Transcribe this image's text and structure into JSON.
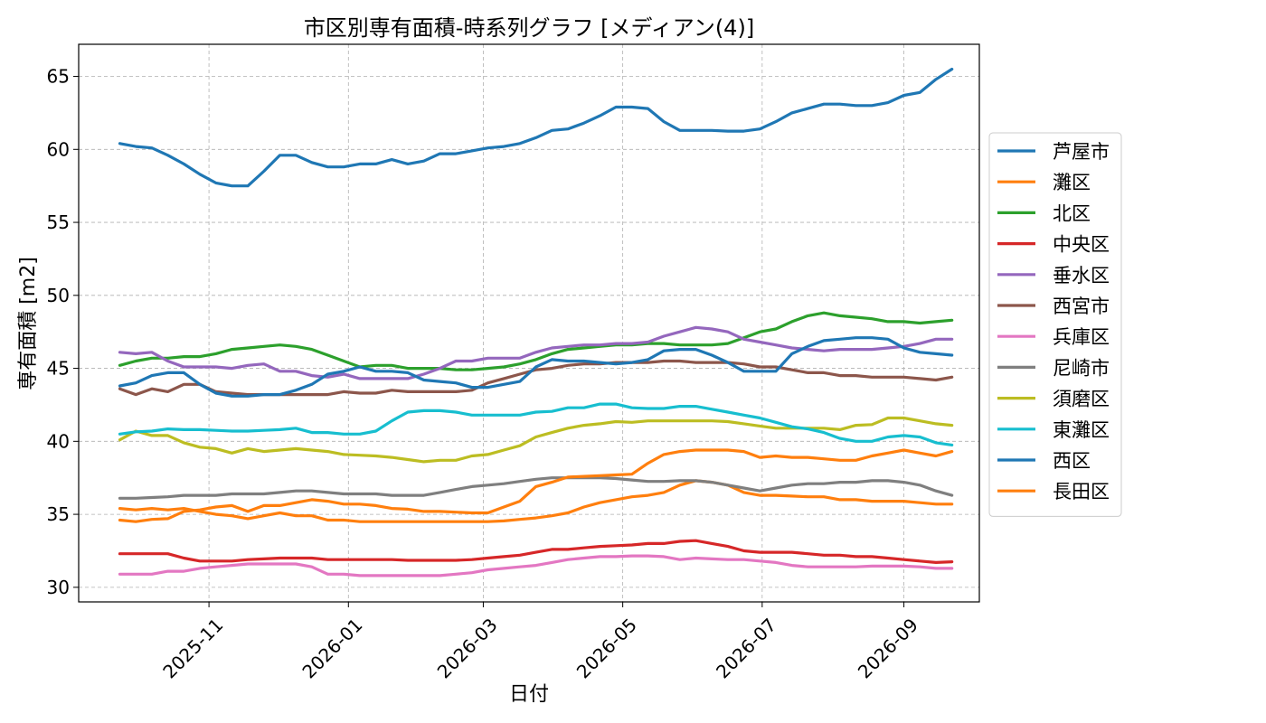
{
  "chart_data": {
    "type": "line",
    "title": "市区別専有面積-時系列グラフ [メディアン(4)]",
    "xlabel": "日付",
    "ylabel": "専有面積 [m2]",
    "ylim": [
      29,
      67.2
    ],
    "xlim": [
      "2025-09-05",
      "2026-10-04"
    ],
    "yticks": [
      30,
      35,
      40,
      45,
      50,
      55,
      60,
      65
    ],
    "xticks": [
      "2025-11-01",
      "2026-01-01",
      "2026-03-01",
      "2026-05-01",
      "2026-07-01",
      "2026-09-01"
    ],
    "xtick_labels": [
      "2025-11",
      "2026-01",
      "2026-03",
      "2026-05",
      "2026-07",
      "2026-09"
    ],
    "grid": true,
    "legend_position": "right",
    "x": [
      "2025-09-23",
      "2025-09-30",
      "2025-10-07",
      "2025-10-14",
      "2025-10-21",
      "2025-10-28",
      "2025-11-04",
      "2025-11-11",
      "2025-11-18",
      "2025-11-25",
      "2025-12-02",
      "2025-12-09",
      "2025-12-16",
      "2025-12-23",
      "2025-12-30",
      "2026-01-06",
      "2026-01-13",
      "2026-01-20",
      "2026-01-27",
      "2026-02-03",
      "2026-02-10",
      "2026-02-17",
      "2026-02-24",
      "2026-03-03",
      "2026-03-10",
      "2026-03-17",
      "2026-03-24",
      "2026-03-31",
      "2026-04-07",
      "2026-04-14",
      "2026-04-21",
      "2026-04-28",
      "2026-05-05",
      "2026-05-12",
      "2026-05-19",
      "2026-05-26",
      "2026-06-02",
      "2026-06-09",
      "2026-06-16",
      "2026-06-23",
      "2026-06-30",
      "2026-07-07",
      "2026-07-14",
      "2026-07-21",
      "2026-07-28",
      "2026-08-04",
      "2026-08-11",
      "2026-08-18",
      "2026-08-25",
      "2026-09-01",
      "2026-09-08",
      "2026-09-15",
      "2026-09-22"
    ],
    "series": [
      {
        "name": "芦屋市",
        "color": "#1f77b4",
        "values": [
          60.4,
          60.2,
          60.1,
          59.6,
          59.0,
          58.3,
          57.7,
          57.5,
          57.5,
          58.5,
          59.6,
          59.6,
          59.1,
          58.8,
          58.8,
          59.0,
          59.0,
          59.3,
          59.0,
          59.2,
          59.7,
          59.7,
          59.9,
          60.1,
          60.2,
          60.4,
          60.8,
          61.3,
          61.4,
          61.8,
          62.3,
          62.9,
          62.9,
          62.8,
          61.9,
          61.3,
          61.3,
          61.3,
          61.25,
          61.25,
          61.4,
          61.9,
          62.5,
          62.8,
          63.1,
          63.1,
          63.0,
          63.0,
          63.2,
          63.7,
          63.9,
          64.8,
          65.5
        ]
      },
      {
        "name": "灘区",
        "color": "#ff7f0e",
        "values": [
          35.4,
          35.3,
          35.4,
          35.3,
          35.4,
          35.2,
          35.0,
          34.9,
          34.7,
          34.9,
          35.1,
          34.9,
          34.9,
          34.6,
          34.6,
          34.5,
          34.5,
          34.5,
          34.5,
          34.5,
          34.5,
          34.5,
          34.5,
          34.5,
          34.55,
          34.65,
          34.75,
          34.9,
          35.1,
          35.5,
          35.8,
          36.0,
          36.2,
          36.3,
          36.5,
          37.0,
          37.3,
          37.2,
          37.0,
          36.5,
          36.3,
          36.3,
          36.25,
          36.2,
          36.2,
          36.0,
          36.0,
          35.9,
          35.9,
          35.9,
          35.8,
          35.7,
          35.7
        ]
      },
      {
        "name": "北区",
        "color": "#2ca02c",
        "values": [
          45.2,
          45.5,
          45.7,
          45.7,
          45.8,
          45.8,
          46.0,
          46.3,
          46.4,
          46.5,
          46.6,
          46.5,
          46.3,
          45.9,
          45.5,
          45.1,
          45.2,
          45.2,
          45.0,
          45.0,
          45.0,
          44.9,
          44.9,
          45.0,
          45.1,
          45.3,
          45.6,
          46.0,
          46.3,
          46.4,
          46.5,
          46.6,
          46.6,
          46.7,
          46.7,
          46.6,
          46.6,
          46.6,
          46.7,
          47.1,
          47.5,
          47.7,
          48.2,
          48.6,
          48.8,
          48.6,
          48.5,
          48.4,
          48.2,
          48.2,
          48.1,
          48.2,
          48.3
        ]
      },
      {
        "name": "中央区",
        "color": "#d62728",
        "values": [
          32.3,
          32.3,
          32.3,
          32.3,
          32.0,
          31.8,
          31.8,
          31.8,
          31.9,
          31.95,
          32.0,
          32.0,
          32.0,
          31.9,
          31.9,
          31.9,
          31.9,
          31.9,
          31.85,
          31.85,
          31.85,
          31.85,
          31.9,
          32.0,
          32.1,
          32.2,
          32.4,
          32.6,
          32.6,
          32.7,
          32.8,
          32.85,
          32.9,
          33.0,
          33.0,
          33.15,
          33.2,
          33.0,
          32.8,
          32.5,
          32.4,
          32.4,
          32.4,
          32.3,
          32.2,
          32.2,
          32.1,
          32.1,
          32.0,
          31.9,
          31.8,
          31.7,
          31.75
        ]
      },
      {
        "name": "垂水区",
        "color": "#9467bd",
        "values": [
          46.1,
          46.0,
          46.1,
          45.5,
          45.1,
          45.1,
          45.1,
          45.0,
          45.2,
          45.3,
          44.8,
          44.8,
          44.5,
          44.4,
          44.6,
          44.3,
          44.3,
          44.3,
          44.3,
          44.6,
          45.0,
          45.5,
          45.5,
          45.7,
          45.7,
          45.7,
          46.1,
          46.4,
          46.5,
          46.6,
          46.6,
          46.7,
          46.7,
          46.8,
          47.2,
          47.5,
          47.8,
          47.7,
          47.5,
          47.0,
          46.8,
          46.6,
          46.4,
          46.3,
          46.2,
          46.3,
          46.3,
          46.3,
          46.4,
          46.5,
          46.7,
          47.0,
          47.0
        ]
      },
      {
        "name": "西宮市",
        "color": "#8c564b",
        "values": [
          43.6,
          43.2,
          43.6,
          43.4,
          43.9,
          43.9,
          43.4,
          43.3,
          43.2,
          43.2,
          43.2,
          43.2,
          43.2,
          43.2,
          43.4,
          43.3,
          43.3,
          43.5,
          43.4,
          43.4,
          43.4,
          43.4,
          43.5,
          44.0,
          44.3,
          44.6,
          44.9,
          45.0,
          45.2,
          45.3,
          45.3,
          45.4,
          45.4,
          45.4,
          45.5,
          45.5,
          45.4,
          45.4,
          45.4,
          45.3,
          45.1,
          45.1,
          44.9,
          44.7,
          44.7,
          44.5,
          44.5,
          44.4,
          44.4,
          44.4,
          44.3,
          44.2,
          44.4
        ]
      },
      {
        "name": "兵庫区",
        "color": "#e377c2",
        "values": [
          30.9,
          30.9,
          30.9,
          31.1,
          31.1,
          31.3,
          31.4,
          31.5,
          31.6,
          31.6,
          31.6,
          31.6,
          31.4,
          30.9,
          30.9,
          30.8,
          30.8,
          30.8,
          30.8,
          30.8,
          30.8,
          30.9,
          31.0,
          31.2,
          31.3,
          31.4,
          31.5,
          31.7,
          31.9,
          32.0,
          32.1,
          32.1,
          32.15,
          32.15,
          32.1,
          31.9,
          32.0,
          31.95,
          31.9,
          31.9,
          31.8,
          31.7,
          31.5,
          31.4,
          31.4,
          31.4,
          31.4,
          31.45,
          31.45,
          31.45,
          31.4,
          31.3,
          31.3
        ]
      },
      {
        "name": "尼崎市",
        "color": "#7f7f7f",
        "values": [
          36.1,
          36.1,
          36.15,
          36.2,
          36.3,
          36.3,
          36.3,
          36.4,
          36.4,
          36.4,
          36.5,
          36.6,
          36.6,
          36.5,
          36.4,
          36.4,
          36.4,
          36.3,
          36.3,
          36.3,
          36.5,
          36.7,
          36.9,
          37.0,
          37.1,
          37.25,
          37.4,
          37.5,
          37.5,
          37.5,
          37.5,
          37.45,
          37.35,
          37.25,
          37.25,
          37.3,
          37.3,
          37.2,
          37.0,
          36.8,
          36.6,
          36.8,
          37.0,
          37.1,
          37.1,
          37.2,
          37.2,
          37.3,
          37.3,
          37.2,
          37.0,
          36.6,
          36.3
        ]
      },
      {
        "name": "須磨区",
        "color": "#bcbd22",
        "values": [
          40.1,
          40.7,
          40.4,
          40.4,
          39.9,
          39.6,
          39.5,
          39.2,
          39.5,
          39.3,
          39.4,
          39.5,
          39.4,
          39.3,
          39.1,
          39.05,
          39.0,
          38.9,
          38.75,
          38.6,
          38.7,
          38.7,
          39.0,
          39.1,
          39.4,
          39.7,
          40.3,
          40.6,
          40.9,
          41.1,
          41.2,
          41.35,
          41.3,
          41.4,
          41.4,
          41.4,
          41.4,
          41.4,
          41.35,
          41.2,
          41.05,
          40.9,
          40.9,
          40.9,
          40.9,
          40.8,
          41.1,
          41.15,
          41.6,
          41.6,
          41.4,
          41.2,
          41.1
        ]
      },
      {
        "name": "東灘区",
        "color": "#17becf",
        "values": [
          40.5,
          40.65,
          40.7,
          40.85,
          40.8,
          40.8,
          40.75,
          40.7,
          40.7,
          40.75,
          40.8,
          40.9,
          40.6,
          40.6,
          40.5,
          40.5,
          40.7,
          41.4,
          42.0,
          42.1,
          42.1,
          42.0,
          41.8,
          41.8,
          41.8,
          41.8,
          42.0,
          42.05,
          42.3,
          42.3,
          42.55,
          42.55,
          42.3,
          42.25,
          42.25,
          42.4,
          42.4,
          42.2,
          42.0,
          41.8,
          41.6,
          41.3,
          41.0,
          40.85,
          40.6,
          40.2,
          40.0,
          40.0,
          40.3,
          40.4,
          40.3,
          39.9,
          39.75
        ]
      },
      {
        "name": "西区",
        "color": "#1f77b4",
        "values": [
          43.8,
          44.0,
          44.5,
          44.7,
          44.7,
          43.9,
          43.3,
          43.1,
          43.1,
          43.2,
          43.2,
          43.5,
          43.9,
          44.6,
          44.8,
          45.1,
          44.8,
          44.8,
          44.7,
          44.2,
          44.1,
          44.0,
          43.7,
          43.7,
          43.9,
          44.1,
          45.1,
          45.6,
          45.5,
          45.5,
          45.4,
          45.3,
          45.4,
          45.6,
          46.2,
          46.3,
          46.3,
          45.9,
          45.4,
          44.8,
          44.8,
          44.8,
          46.0,
          46.5,
          46.9,
          47.0,
          47.1,
          47.1,
          47.0,
          46.4,
          46.1,
          46.0,
          45.9
        ]
      },
      {
        "name": "長田区",
        "color": "#ff7f0e",
        "values": [
          34.6,
          34.5,
          34.65,
          34.7,
          35.2,
          35.3,
          35.5,
          35.6,
          35.2,
          35.6,
          35.6,
          35.8,
          36.0,
          35.9,
          35.7,
          35.7,
          35.6,
          35.4,
          35.35,
          35.2,
          35.2,
          35.15,
          35.1,
          35.1,
          35.5,
          35.9,
          36.9,
          37.2,
          37.55,
          37.6,
          37.65,
          37.7,
          37.75,
          38.5,
          39.1,
          39.3,
          39.4,
          39.4,
          39.4,
          39.3,
          38.9,
          39.0,
          38.9,
          38.9,
          38.8,
          38.7,
          38.7,
          39.0,
          39.2,
          39.4,
          39.2,
          39.0,
          39.3
        ]
      }
    ]
  }
}
